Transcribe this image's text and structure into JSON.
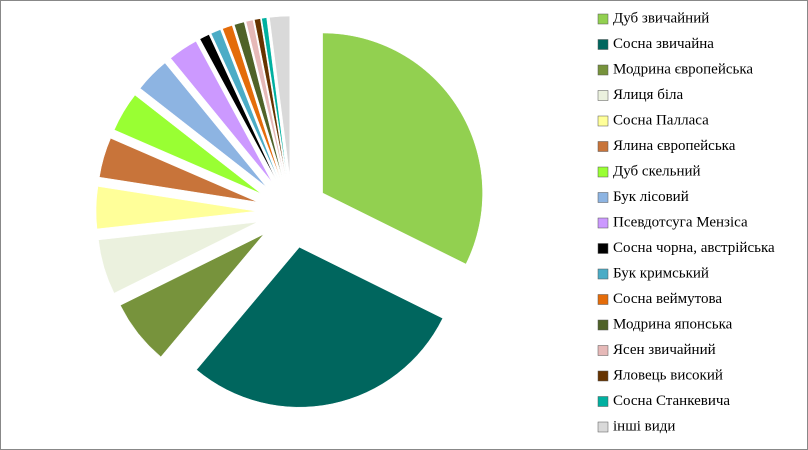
{
  "chart_data": {
    "type": "pie",
    "categories": [
      "Дуб звичайний",
      "Сосна звичайна",
      "Модрина європейська",
      "Ялиця  біла",
      "Сосна Палласа",
      "Ялина  європейська",
      "Дуб скельний",
      "Бук лісовий",
      "Псевдотсуга Мензіса",
      "Сосна чорна, австрійська",
      "Бук кримський",
      "Сосна веймутова",
      "Модрина   японська",
      "Ясен звичайний",
      "Яловець високий",
      "Сосна Станкевича",
      "інші види"
    ],
    "values": [
      32,
      28.5,
      6.5,
      5.5,
      4.2,
      4,
      4,
      3.5,
      3,
      1,
      1,
      1,
      1,
      0.7,
      0.6,
      0.5,
      2
    ],
    "colors": [
      "#92d050",
      "#00665e",
      "#77933c",
      "#ebf1de",
      "#ffff99",
      "#c8743a",
      "#99ff33",
      "#8db4e2",
      "#cc99ff",
      "#000000",
      "#4bacc6",
      "#e46c0a",
      "#4f6228",
      "#e6b9b8",
      "#663300",
      "#00b0a0",
      "#d9d9d9"
    ],
    "legend": "right"
  }
}
